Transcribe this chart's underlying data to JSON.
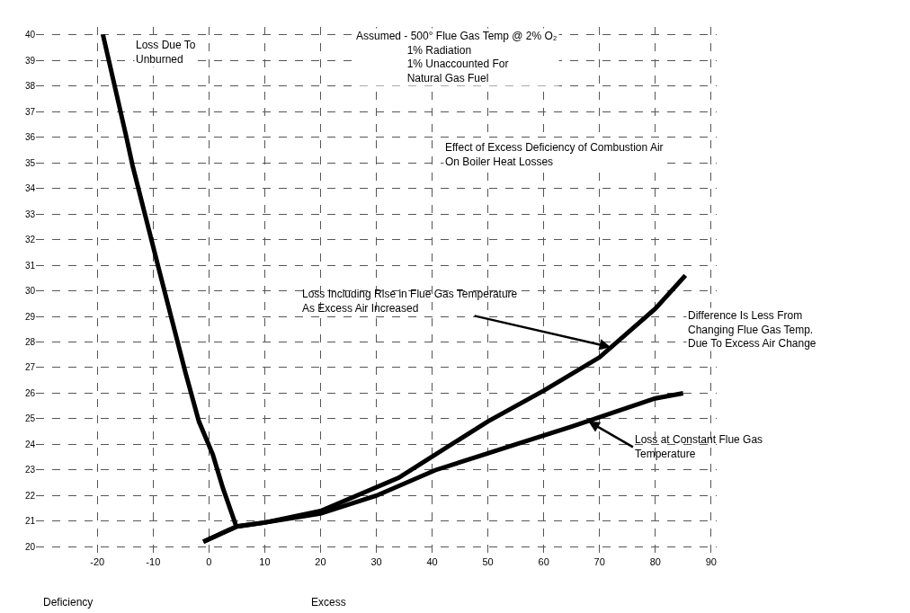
{
  "chart_data": {
    "type": "line",
    "xlim": [
      -31,
      91
    ],
    "xticks": [
      -20,
      -10,
      0,
      10,
      20,
      30,
      40,
      50,
      60,
      70,
      80,
      90
    ],
    "ylim": [
      19.7,
      40.3
    ],
    "yticks": [
      20,
      21,
      22,
      23,
      24,
      25,
      26,
      27,
      28,
      29,
      30,
      31,
      32,
      33,
      34,
      35,
      36,
      37,
      38,
      39,
      40
    ],
    "grid": true,
    "marker": "none",
    "line_style": "solid",
    "series": [
      {
        "color": "#000000",
        "x": [
          -19,
          -14.8,
          -13.7,
          -8.8,
          -4.2,
          -1.8,
          0.7,
          2.5,
          4.9
        ],
        "values": [
          40,
          36,
          34.9,
          30.7,
          26.8,
          24.9,
          23.6,
          22.3,
          20.8
        ]
      },
      {
        "color": "#000000",
        "x": [
          -1,
          5,
          10,
          20,
          34,
          50,
          60,
          70,
          80,
          85.4
        ],
        "values": [
          20.2,
          20.8,
          20.95,
          21.4,
          22.7,
          24.9,
          26.1,
          27.4,
          29.3,
          30.6
        ]
      },
      {
        "color": "#000000",
        "x": [
          -1,
          5,
          10,
          20,
          30,
          40.6,
          55,
          65,
          80,
          85
        ],
        "values": [
          20.2,
          20.8,
          20.95,
          21.3,
          22.0,
          23.0,
          24.0,
          24.7,
          25.8,
          26.0
        ]
      }
    ],
    "annotations": [
      "Loss Due To\nUnburned",
      "Assumed - 500° Flue Gas Temp @ 2% O₂\n                 1% Radiation\n                 1% Unaccounted For\n                 Natural Gas Fuel",
      "Effect of Excess Deficiency of Combustion Air\nOn Boiler Heat Losses",
      "Deficiency",
      "Excess",
      {
        "text": "Loss Including Rise in Flue Gas Temperature\nAs Excess Air Increased",
        "x": 72,
        "y": 27.8
      },
      "Difference Is Less From\nChanging Flue Gas Temp.\nDue To Excess Air Change",
      {
        "text": "Loss at Constant Flue Gas\nTemperature",
        "x": 68,
        "y": 24.9
      }
    ]
  }
}
